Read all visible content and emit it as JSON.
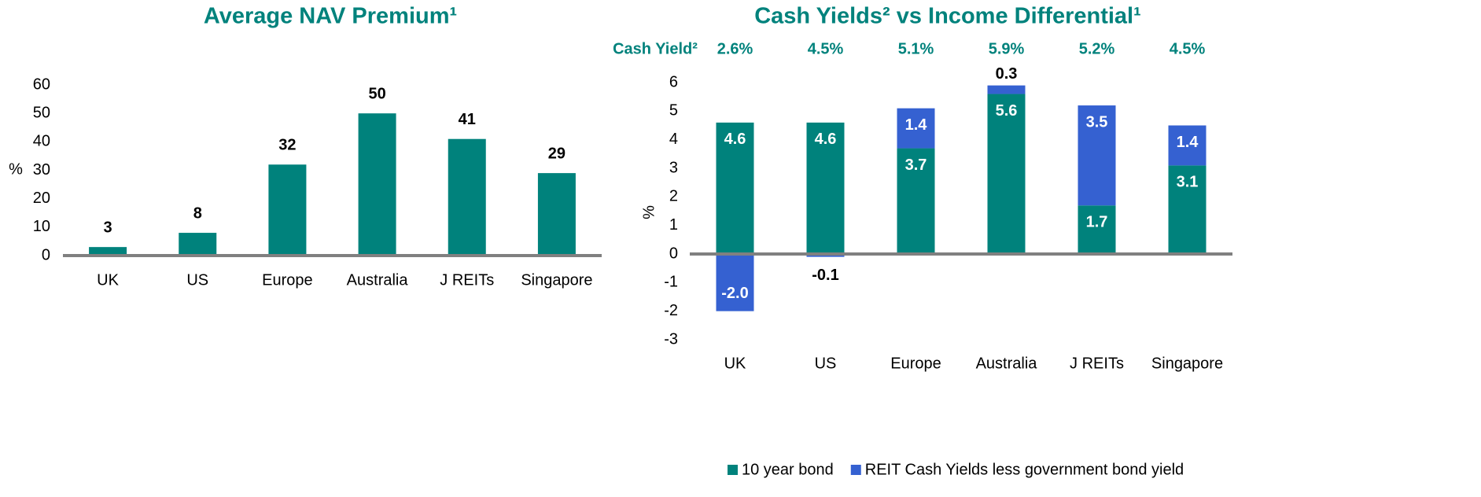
{
  "chart_data": [
    {
      "type": "bar",
      "title": "Average NAV Premium¹",
      "y_label": "%",
      "categories": [
        "UK",
        "US",
        "Europe",
        "Australia",
        "J REITs",
        "Singapore"
      ],
      "values": [
        3,
        8,
        32,
        50,
        41,
        29
      ],
      "color": "#00827c",
      "ylim": [
        0,
        60
      ],
      "yticks": [
        0,
        10,
        20,
        30,
        40,
        50,
        60
      ],
      "grid": false,
      "legend": "none"
    },
    {
      "type": "stacked_bar",
      "title": "Cash Yields² vs Income Differential¹",
      "y_label": "%",
      "categories": [
        "UK",
        "US",
        "Europe",
        "Australia",
        "J REITs",
        "Singapore"
      ],
      "cash_yield": {
        "label": "Cash Yield²",
        "values": [
          2.6,
          4.5,
          5.1,
          5.9,
          5.2,
          4.5
        ],
        "value_labels": [
          "2.6%",
          "4.5%",
          "5.1%",
          "5.9%",
          "5.2%",
          "4.5%"
        ]
      },
      "series": [
        {
          "name": "10 year bond",
          "color": "#00827c",
          "values": [
            4.6,
            4.6,
            3.7,
            5.6,
            1.7,
            3.1
          ]
        },
        {
          "name": "REIT Cash Yields less government bond yield",
          "color": "#3561d1",
          "values": [
            -2.0,
            -0.1,
            1.4,
            0.3,
            3.5,
            1.4
          ],
          "value_labels": [
            "-2.0",
            "-0.1",
            "1.4",
            "0.3",
            "3.5",
            "1.4"
          ]
        }
      ],
      "ylim": [
        -3,
        6
      ],
      "yticks": [
        -3,
        -2,
        -1,
        0,
        1,
        2,
        3,
        4,
        5,
        6
      ],
      "grid": false,
      "legend": "bottom"
    }
  ]
}
